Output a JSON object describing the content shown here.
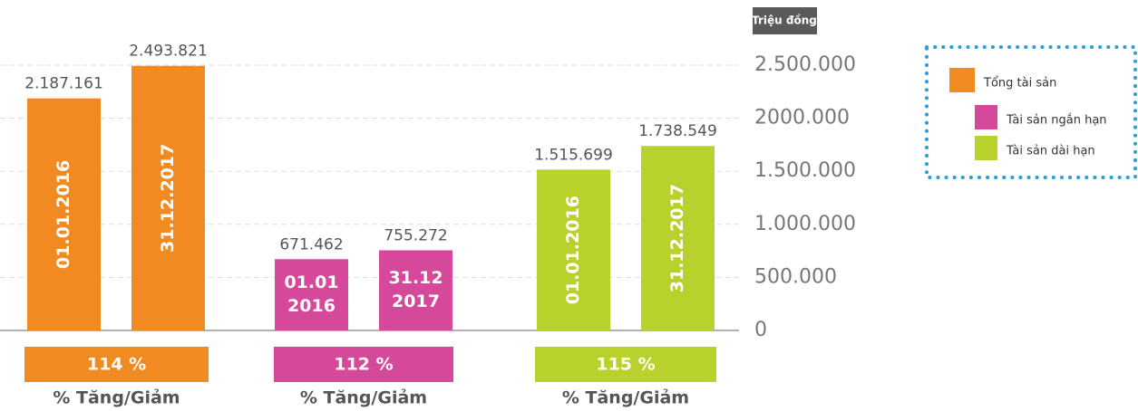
{
  "chart_data": {
    "type": "bar",
    "y_axis_label": "Triệu đồng",
    "ylim": [
      0,
      2500000
    ],
    "yticks": [
      0,
      {
        "value": 500000,
        "label": "500.000"
      },
      {
        "value": 1000000,
        "label": "1.000.000"
      },
      {
        "value": 1500000,
        "label": "1.500.000"
      },
      {
        "value": 2000000,
        "label": "2000.000"
      },
      {
        "value": 2500000,
        "label": "2.500.000"
      }
    ],
    "grid": true,
    "legend": "right",
    "bar_label_rotated": [
      true,
      false,
      true
    ],
    "series": [
      {
        "name": "Tổng tài sản",
        "color": "#f28a22",
        "values": [
          2187161,
          2493821
        ],
        "value_labels": [
          "2.187.161",
          "2.493.821"
        ],
        "bar_labels": [
          [
            "01.01.2016"
          ],
          [
            "31.12.2017"
          ]
        ]
      },
      {
        "name": "Tài sản ngắn hạn",
        "color": "#d5489a",
        "values": [
          671462,
          755272
        ],
        "value_labels": [
          "671.462",
          "755.272"
        ],
        "bar_labels": [
          [
            "01.01",
            "2016"
          ],
          [
            "31.12",
            "2017"
          ]
        ]
      },
      {
        "name": "Tài sản dài hạn",
        "color": "#b8d12c",
        "values": [
          1515699,
          1738549
        ],
        "value_labels": [
          "1.515.699",
          "1.738.549"
        ],
        "bar_labels": [
          [
            "01.01.2016"
          ],
          [
            "31.12.2017"
          ]
        ]
      }
    ],
    "change": {
      "values": [
        114,
        112,
        115
      ],
      "value_labels": [
        "114 %",
        "112 %",
        "115 %"
      ]
    },
    "change_captions": [
      "% Tăng/Giảm",
      "% Tăng/Giảm",
      "% Tăng/Giảm"
    ]
  }
}
